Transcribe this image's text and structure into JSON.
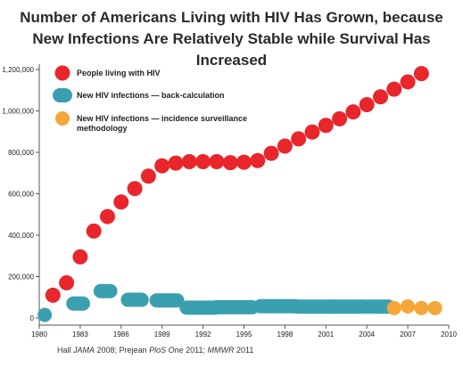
{
  "chart_data": {
    "type": "scatter",
    "title": [
      "Number of Americans Living with HIV Has Grown, because",
      "New Infections Are Relatively Stable while Survival Has Increased"
    ],
    "xlabel": "",
    "ylabel": "",
    "xlim": [
      1980,
      2010
    ],
    "ylim": [
      0,
      1200000
    ],
    "x_ticks": [
      "1980",
      "1983",
      "1986",
      "1989",
      "1992",
      "1995",
      "1998",
      "2001",
      "2004",
      "2007",
      "2010"
    ],
    "y_ticks": [
      "0",
      "200,000",
      "400,000",
      "600,000",
      "800,000",
      "1,000,000",
      "1,200,000"
    ],
    "legend_position": "top-left",
    "grid": false,
    "series": [
      {
        "name": "People living with HIV",
        "color": "#e8262c",
        "marker": "circle",
        "x": [
          1981,
          1982,
          1983,
          1984,
          1985,
          1986,
          1987,
          1988,
          1989,
          1990,
          1991,
          1992,
          1993,
          1994,
          1995,
          1996,
          1997,
          1998,
          1999,
          2000,
          2001,
          2002,
          2003,
          2004,
          2005,
          2006,
          2007,
          2008
        ],
        "y": [
          110000,
          170000,
          295000,
          420000,
          490000,
          560000,
          625000,
          685000,
          735000,
          748000,
          755000,
          755000,
          755000,
          750000,
          752000,
          760000,
          795000,
          830000,
          865000,
          898000,
          930000,
          962000,
          995000,
          1030000,
          1068000,
          1105000,
          1140000,
          1180000
        ]
      },
      {
        "name": "New HIV infections — back-calculation",
        "color": "#3aa0b0",
        "marker": "segment",
        "segments": [
          {
            "x_start": 1980.4,
            "x_end": 1980.4,
            "y": 15000
          },
          {
            "x_start": 1982.5,
            "x_end": 1983.2,
            "y": 70000
          },
          {
            "x_start": 1984.5,
            "x_end": 1985.2,
            "y": 130000
          },
          {
            "x_start": 1986.5,
            "x_end": 1987.5,
            "y": 88000
          },
          {
            "x_start": 1988.6,
            "x_end": 1990.1,
            "y": 85000
          },
          {
            "x_start": 1990.8,
            "x_end": 1992.9,
            "y": 50000
          },
          {
            "x_start": 1993.0,
            "x_end": 1995.6,
            "y": 52000
          },
          {
            "x_start": 1996.2,
            "x_end": 1998.8,
            "y": 57000
          },
          {
            "x_start": 1998.9,
            "x_end": 2001.4,
            "y": 55000
          },
          {
            "x_start": 2001.4,
            "x_end": 2003.9,
            "y": 55000
          },
          {
            "x_start": 2004.2,
            "x_end": 2005.6,
            "y": 55000
          }
        ]
      },
      {
        "name": "New HIV infections — incidence surveillance methodology",
        "color": "#f6a73a",
        "marker": "circle",
        "x": [
          2006,
          2007,
          2008,
          2009
        ],
        "y": [
          48000,
          56000,
          48000,
          48000
        ]
      }
    ]
  },
  "source": {
    "items": [
      {
        "text": "Hall ",
        "italic": false
      },
      {
        "text": "JAMA",
        "italic": true
      },
      {
        "text": " 2008; Prejean ",
        "italic": false
      },
      {
        "text": "PloS One",
        "italic": true
      },
      {
        "text": " 2011; ",
        "italic": false
      },
      {
        "text": "MMWR",
        "italic": true
      },
      {
        "text": " 2011",
        "italic": false
      }
    ]
  },
  "colors": {
    "axis": "#555555",
    "people_living": "#e8262c",
    "back_calculation": "#3aa0b0",
    "incidence_surveillance": "#f6a73a"
  }
}
